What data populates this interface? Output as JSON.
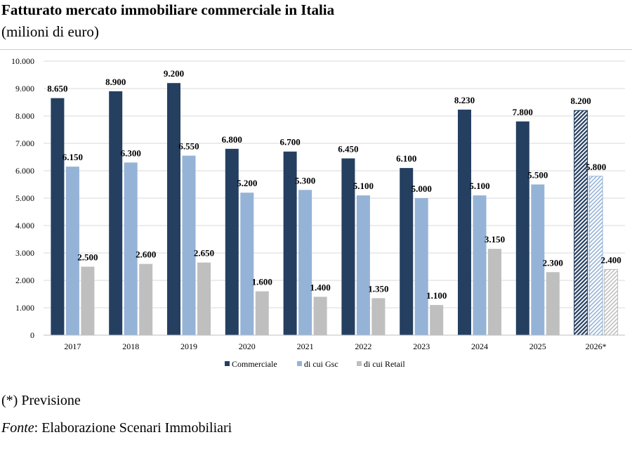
{
  "header": {
    "title": "Fatturato mercato immobiliare commerciale in Italia",
    "subtitle": "(milioni di euro)"
  },
  "footer": {
    "note": "(*) Previsione",
    "source_label": "Fonte",
    "source_text": ": Elaborazione Scenari Immobiliari"
  },
  "colors": {
    "commerciale": "#243F60",
    "gsc": "#95B3D7",
    "retail": "#BFBFBF",
    "grid": "#d9d9d9"
  },
  "chart_data": {
    "type": "bar",
    "title": "",
    "xlabel": "",
    "ylabel": "",
    "ylim": [
      0,
      10000
    ],
    "yticks": [
      0,
      1000,
      2000,
      3000,
      4000,
      5000,
      6000,
      7000,
      8000,
      9000,
      10000
    ],
    "ytick_labels": [
      "0",
      "1.000",
      "2.000",
      "3.000",
      "4.000",
      "5.000",
      "6.000",
      "7.000",
      "8.000",
      "9.000",
      "10.000"
    ],
    "categories": [
      "2017",
      "2018",
      "2019",
      "2020",
      "2021",
      "2022",
      "2023",
      "2024",
      "2025",
      "2026*"
    ],
    "forecast_index": 9,
    "grid": true,
    "legend_position": "bottom",
    "series": [
      {
        "name": "Commerciale",
        "values": [
          8650,
          8900,
          9200,
          6800,
          6700,
          6450,
          6100,
          8230,
          7800,
          8200
        ],
        "labels": [
          "8.650",
          "8.900",
          "9.200",
          "6.800",
          "6.700",
          "6.450",
          "6.100",
          "8.230",
          "7.800",
          "8.200"
        ]
      },
      {
        "name": "di cui Gsc",
        "values": [
          6150,
          6300,
          6550,
          5200,
          5300,
          5100,
          5000,
          5100,
          5500,
          5800
        ],
        "labels": [
          "6.150",
          "6.300",
          "6.550",
          "5.200",
          "5.300",
          "5.100",
          "5.000",
          "5.100",
          "5.500",
          "5.800"
        ]
      },
      {
        "name": "di cui Retail",
        "values": [
          2500,
          2600,
          2650,
          1600,
          1400,
          1350,
          1100,
          3150,
          2300,
          2400
        ],
        "labels": [
          "2.500",
          "2.600",
          "2.650",
          "1.600",
          "1.400",
          "1.350",
          "1.100",
          "3.150",
          "2.300",
          "2.400"
        ]
      }
    ]
  }
}
